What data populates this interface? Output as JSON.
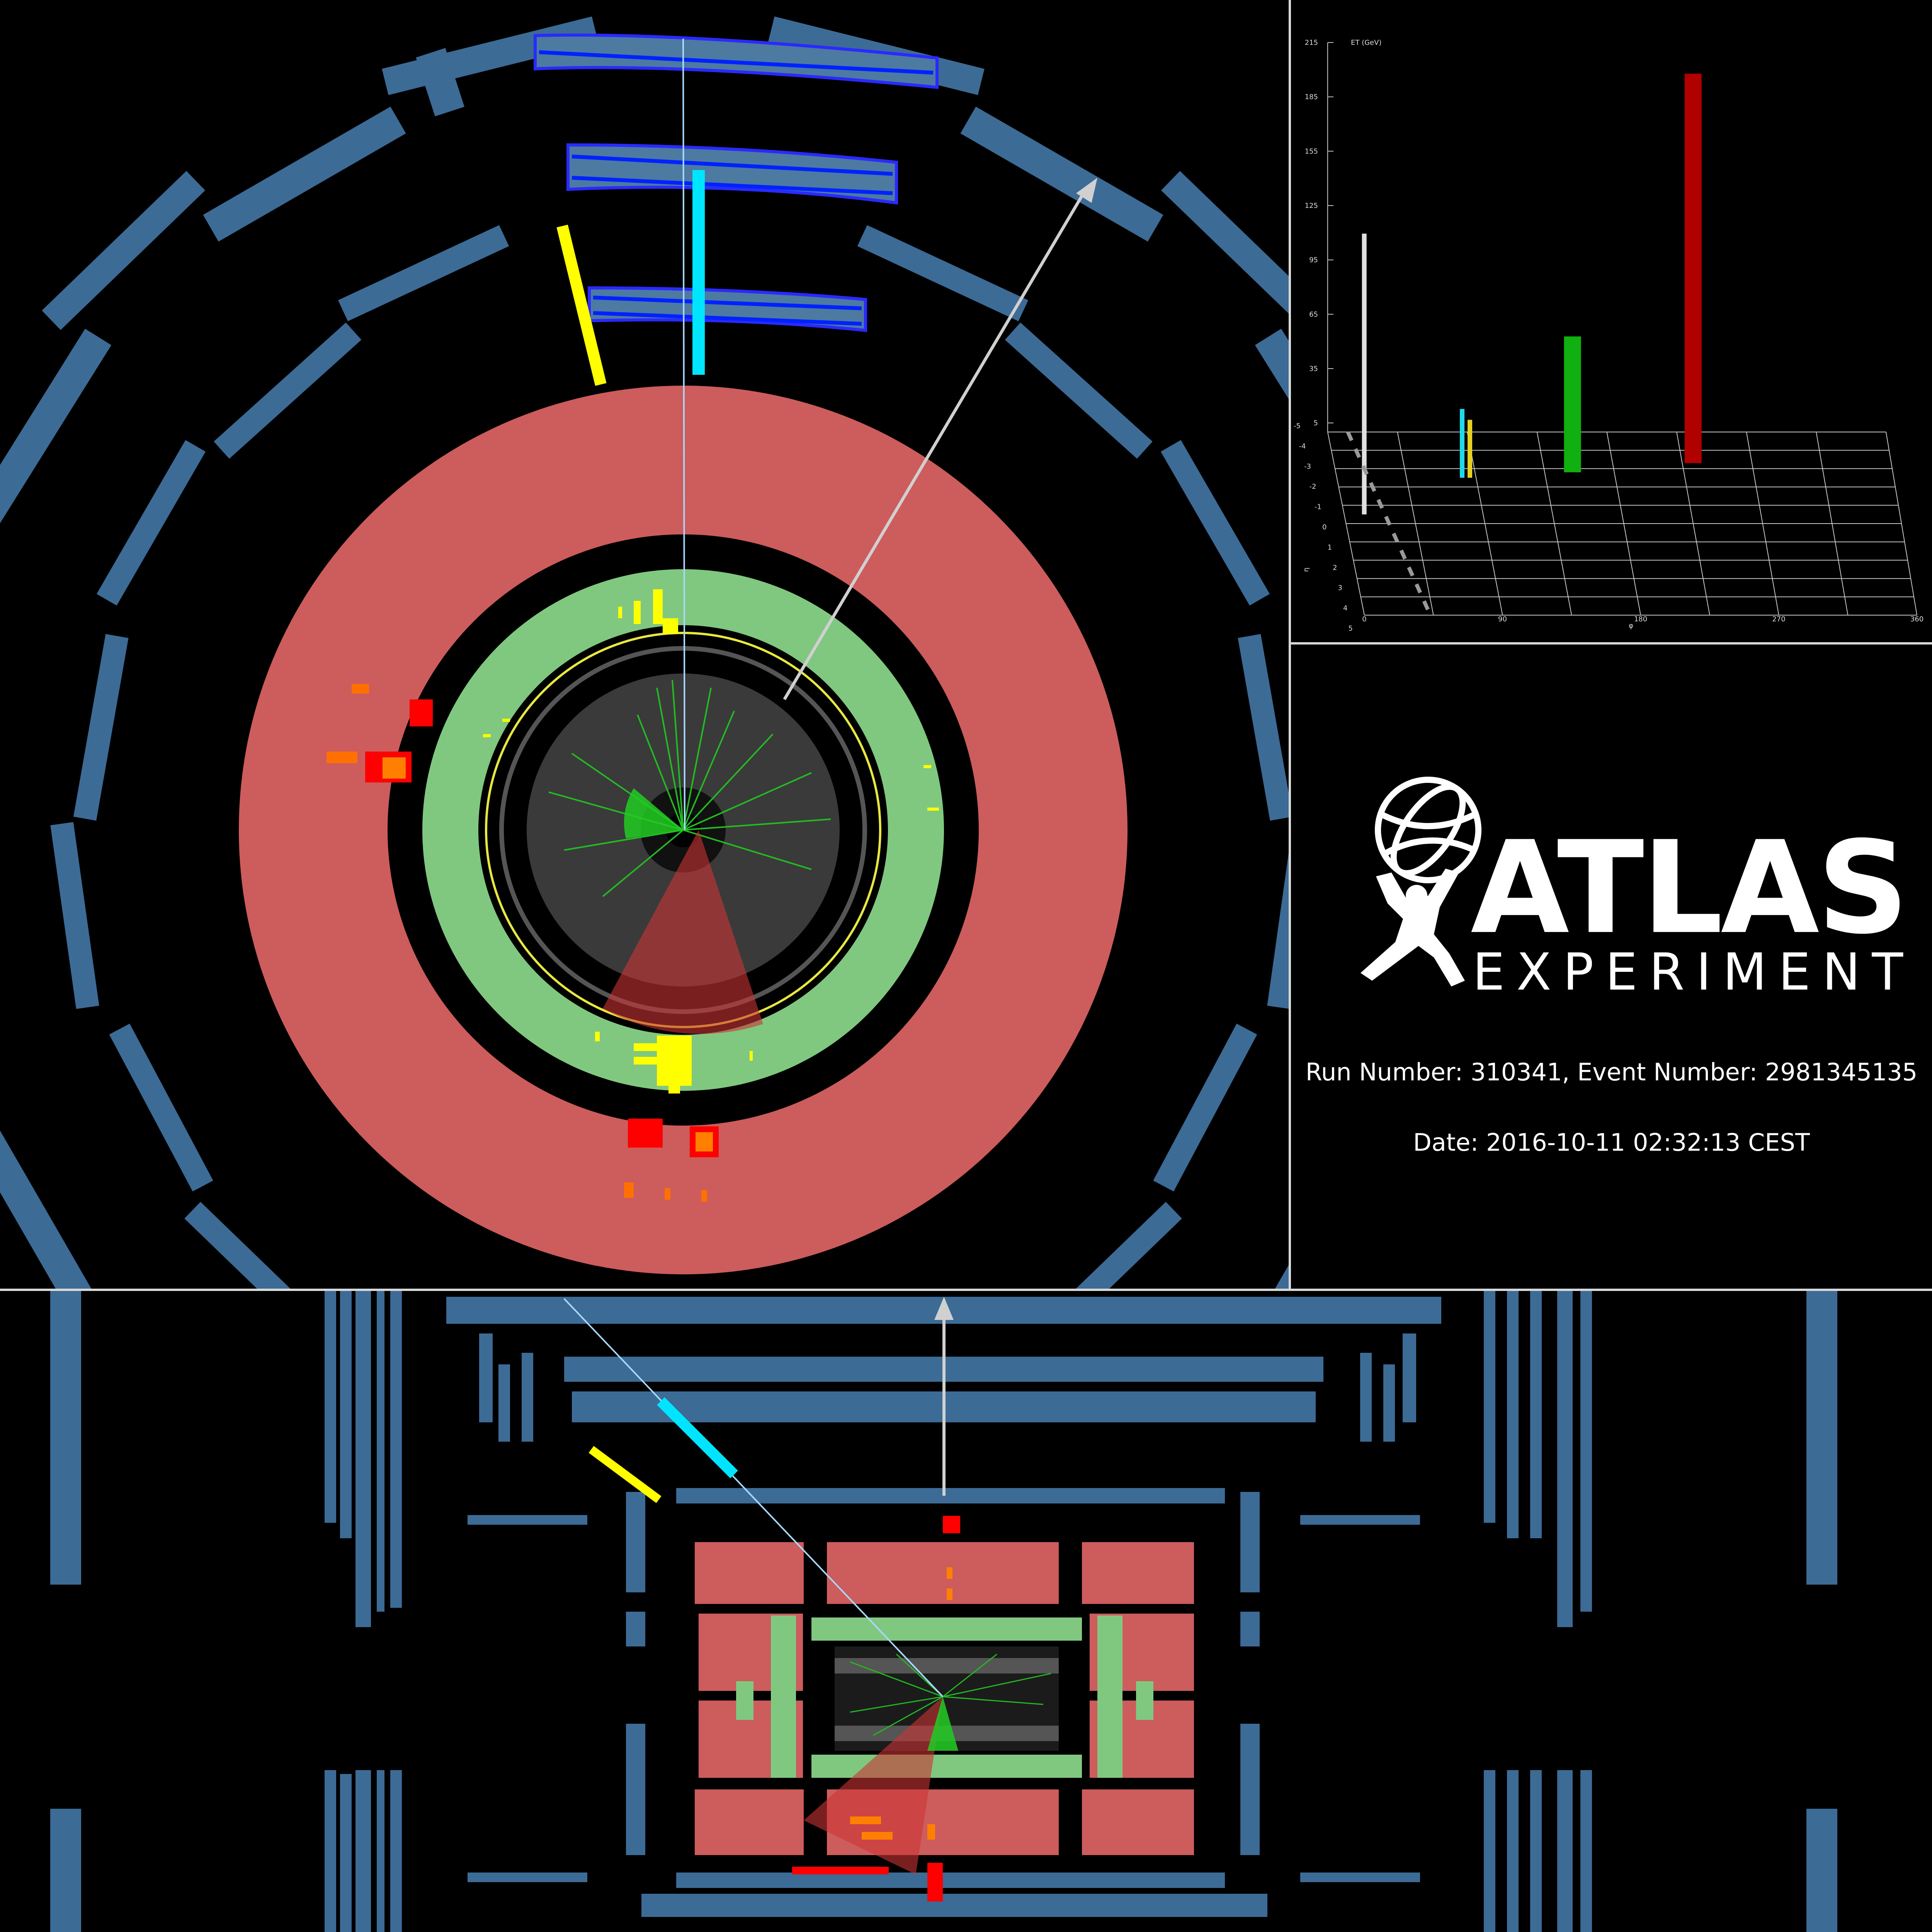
{
  "info": {
    "logo_word": "ATLAS",
    "logo_subword": "EXPERIMENT",
    "run_event": "Run Number: 310341, Event Number: 2981345135",
    "date": "Date: 2016-10-11 02:32:13 CEST"
  },
  "lego_plot": {
    "z_axis_label": "ET (GeV)",
    "z_ticks": [
      "215",
      "185",
      "155",
      "125",
      "95",
      "65",
      "35",
      "5"
    ],
    "phi_label": "φ",
    "phi_ticks": [
      "0",
      "90",
      "180",
      "270",
      "360"
    ],
    "eta_label": "η",
    "eta_ticks": [
      "-5",
      "-4",
      "-3",
      "-2",
      "-1",
      "0",
      "1",
      "2",
      "3",
      "4",
      "5"
    ]
  },
  "chart_data": {
    "type": "bar",
    "z_range": [
      0,
      215
    ],
    "bars": [
      {
        "phi": 13,
        "eta": -0.5,
        "et": 155,
        "color": "#e0e0e0"
      },
      {
        "phi": 81,
        "eta": -2.5,
        "et": 38,
        "color": "#20d8e8"
      },
      {
        "phi": 86,
        "eta": -2.5,
        "et": 32,
        "color": "#e8d020"
      },
      {
        "phi": 153,
        "eta": -2.8,
        "et": 75,
        "color": "#10b010"
      },
      {
        "phi": 232,
        "eta": -3.3,
        "et": 215,
        "color": "#b00000"
      }
    ]
  },
  "colors": {
    "muon_chamber": "#3c6b96",
    "hadronic_calorimeter": "#cd5c5c",
    "em_calorimeter": "#80c880",
    "inner_detector": "#3a3a3a",
    "muon_track": "#00e5ff",
    "electron_track": "#ffff00",
    "missing_et": "#d0d0d0"
  }
}
